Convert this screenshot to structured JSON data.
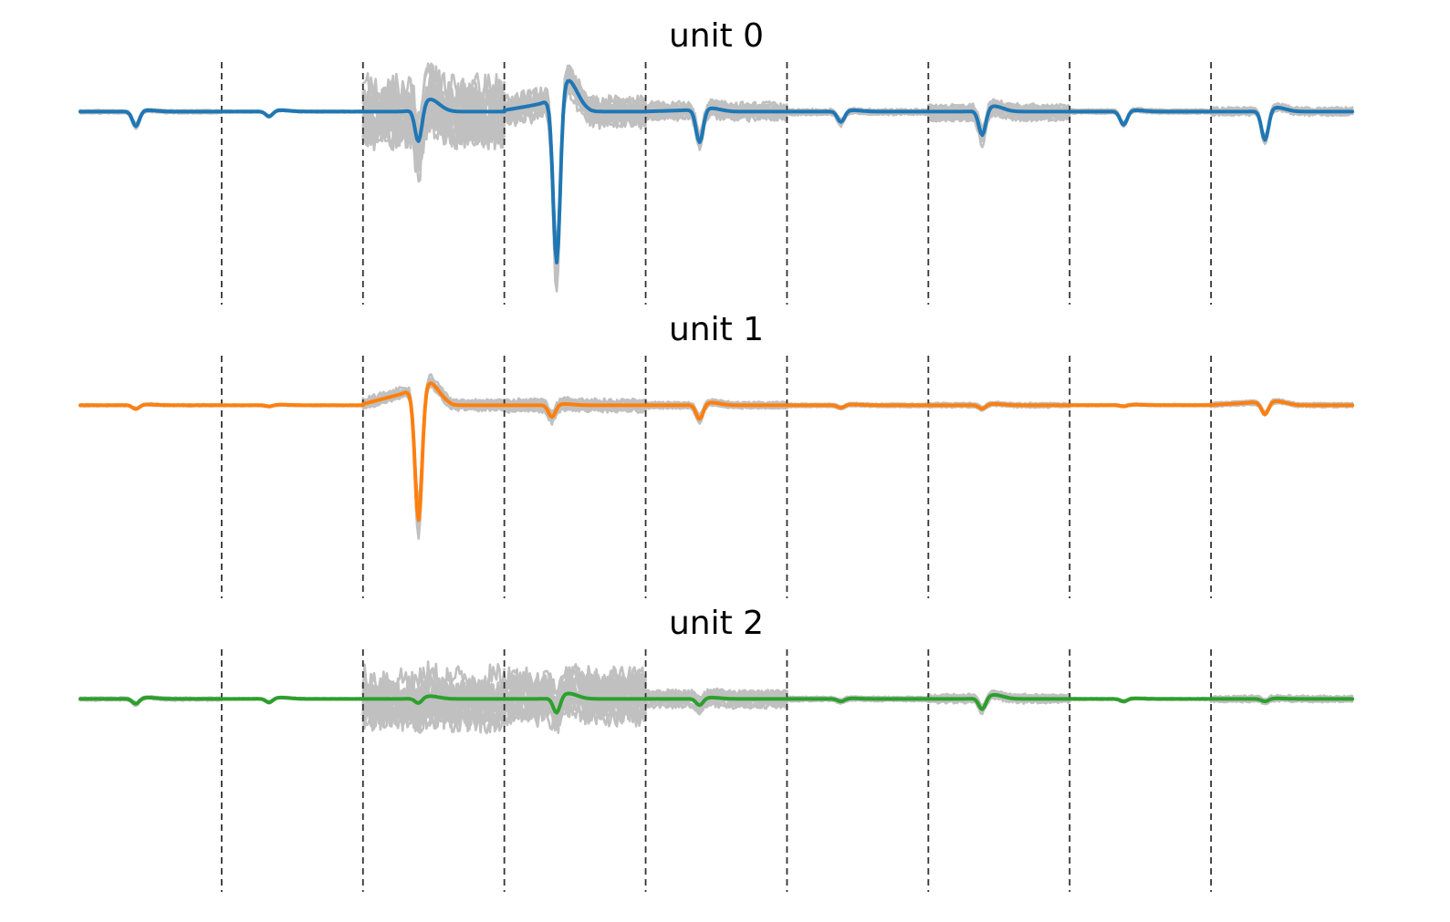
{
  "chart_data": {
    "type": "line",
    "description_of_axes": "",
    "channels_per_unit": 9,
    "samples_per_channel": 90,
    "ylim": [
      -7,
      1.8
    ],
    "grid": false,
    "axes_visible": false,
    "colors": {
      "individual_spikes": "#c0c0c0",
      "divider": "#333333"
    },
    "panels": [
      {
        "title": "unit 0",
        "mean_color": "#1f77b4",
        "mean_waveform_by_channel": [
          {
            "channel": 0,
            "start": 0,
            "peak_sample": 35,
            "peak": -0.55,
            "rebound": 0.05
          },
          {
            "channel": 1,
            "start": 0,
            "peak_sample": 30,
            "peak": -0.2,
            "rebound": 0.05
          },
          {
            "channel": 2,
            "start": 0,
            "peak_sample": 35,
            "peak": -1.3,
            "rebound": 0.45
          },
          {
            "channel": 3,
            "start": 0.3,
            "peak_sample": 33,
            "peak": -6.2,
            "rebound": 1.0
          },
          {
            "channel": 4,
            "start": 0.05,
            "peak_sample": 34,
            "peak": -1.2,
            "rebound": 0.1
          },
          {
            "channel": 5,
            "start": 0,
            "peak_sample": 34,
            "peak": -0.4,
            "rebound": 0.05
          },
          {
            "channel": 6,
            "start": 0,
            "peak_sample": 34,
            "peak": -0.95,
            "rebound": 0.2
          },
          {
            "channel": 7,
            "start": 0,
            "peak_sample": 34,
            "peak": -0.5,
            "rebound": 0.05
          },
          {
            "channel": 8,
            "start": 0,
            "peak_sample": 34,
            "peak": -1.1,
            "rebound": 0.15
          }
        ],
        "spike_spread_by_channel": [
          0.15,
          0.1,
          3.3,
          1.5,
          0.8,
          0.3,
          0.8,
          0.2,
          0.4
        ]
      },
      {
        "title": "unit 1",
        "mean_color": "#ff7f0e",
        "mean_waveform_by_channel": [
          {
            "channel": 0,
            "start": 0,
            "peak_sample": 35,
            "peak": -0.15,
            "rebound": 0.03
          },
          {
            "channel": 1,
            "start": 0,
            "peak_sample": 30,
            "peak": -0.05,
            "rebound": 0.02
          },
          {
            "channel": 2,
            "start": 0.45,
            "peak_sample": 35,
            "peak": -4.8,
            "rebound": 0.6
          },
          {
            "channel": 3,
            "start": 0,
            "peak_sample": 30,
            "peak": -0.45,
            "rebound": 0.05
          },
          {
            "channel": 4,
            "start": 0,
            "peak_sample": 34,
            "peak": -0.55,
            "rebound": 0.1
          },
          {
            "channel": 5,
            "start": 0,
            "peak_sample": 34,
            "peak": -0.1,
            "rebound": 0.03
          },
          {
            "channel": 6,
            "start": 0,
            "peak_sample": 34,
            "peak": -0.15,
            "rebound": 0.05
          },
          {
            "channel": 7,
            "start": 0,
            "peak_sample": 34,
            "peak": -0.05,
            "rebound": 0.02
          },
          {
            "channel": 8,
            "start": 0.1,
            "peak_sample": 34,
            "peak": -0.45,
            "rebound": 0.1
          }
        ],
        "spike_spread_by_channel": [
          0.1,
          0.08,
          0.5,
          0.6,
          0.3,
          0.15,
          0.2,
          0.1,
          0.2
        ]
      },
      {
        "title": "unit 2",
        "mean_color": "#2ca02c",
        "mean_waveform_by_channel": [
          {
            "channel": 0,
            "start": 0,
            "peak_sample": 35,
            "peak": -0.2,
            "rebound": 0.05
          },
          {
            "channel": 1,
            "start": 0,
            "peak_sample": 30,
            "peak": -0.15,
            "rebound": 0.05
          },
          {
            "channel": 2,
            "start": 0,
            "peak_sample": 35,
            "peak": -0.2,
            "rebound": 0.1
          },
          {
            "channel": 3,
            "start": 0,
            "peak_sample": 33,
            "peak": -0.6,
            "rebound": 0.2
          },
          {
            "channel": 4,
            "start": 0,
            "peak_sample": 34,
            "peak": -0.25,
            "rebound": 0.05
          },
          {
            "channel": 5,
            "start": 0,
            "peak_sample": 34,
            "peak": -0.1,
            "rebound": 0.02
          },
          {
            "channel": 6,
            "start": 0,
            "peak_sample": 34,
            "peak": -0.45,
            "rebound": 0.15
          },
          {
            "channel": 7,
            "start": 0,
            "peak_sample": 34,
            "peak": -0.1,
            "rebound": 0.02
          },
          {
            "channel": 8,
            "start": 0,
            "peak_sample": 34,
            "peak": -0.1,
            "rebound": 0.02
          }
        ],
        "spike_spread_by_channel": [
          0.15,
          0.1,
          3.0,
          2.5,
          0.8,
          0.2,
          0.4,
          0.1,
          0.3
        ]
      }
    ]
  }
}
